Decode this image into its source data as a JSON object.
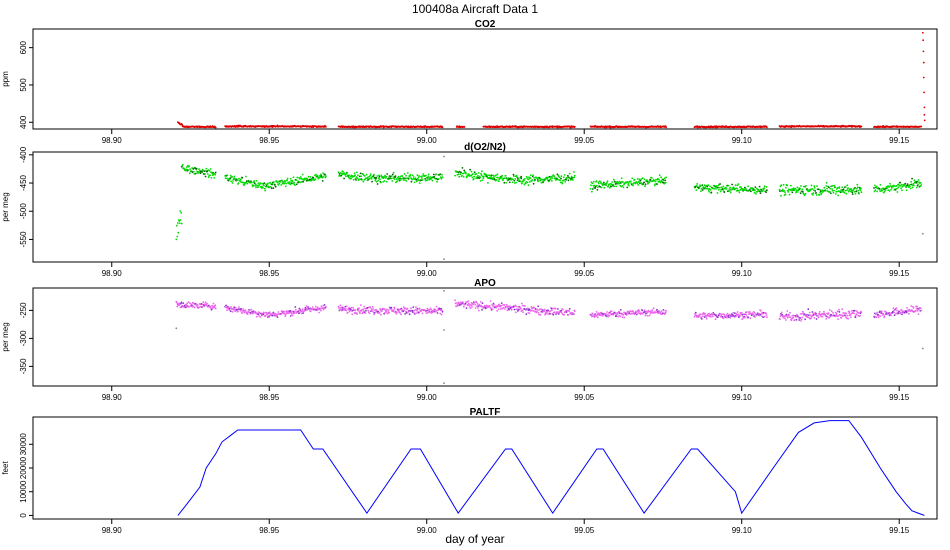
{
  "figure": {
    "title": "100408a   Aircraft Data 1",
    "xlabel": "day of year"
  },
  "chart_data": [
    {
      "type": "scatter",
      "title": "CO2",
      "ylabel": "ppm",
      "xlim": [
        98.875,
        99.162
      ],
      "ylim": [
        382,
        650
      ],
      "xticks": [
        98.9,
        98.95,
        99.0,
        99.05,
        99.1,
        99.15
      ],
      "xtick_labels": [
        "98.90",
        "98.95",
        "99.00",
        "99.05",
        "99.10",
        "99.15"
      ],
      "yticks": [
        400,
        500,
        600
      ],
      "color": "#dd0000",
      "segments": [
        {
          "x0": 98.921,
          "x1": 98.9225,
          "y0": 400,
          "y1": 390,
          "noise": 3
        },
        {
          "x0": 98.9225,
          "x1": 98.933,
          "y0": 388,
          "y1": 388,
          "noise": 1.5
        },
        {
          "x0": 98.936,
          "x1": 98.968,
          "y0": 389,
          "y1": 389,
          "noise": 1.5
        },
        {
          "x0": 98.972,
          "x1": 99.005,
          "y0": 388,
          "y1": 388,
          "noise": 1.5
        },
        {
          "x0": 99.0095,
          "x1": 99.012,
          "y0": 388,
          "y1": 388,
          "noise": 1.5
        },
        {
          "x0": 99.018,
          "x1": 99.047,
          "y0": 388,
          "y1": 388,
          "noise": 1.5
        },
        {
          "x0": 99.052,
          "x1": 99.076,
          "y0": 388,
          "y1": 388,
          "noise": 1.5
        },
        {
          "x0": 99.085,
          "x1": 99.108,
          "y0": 388,
          "y1": 388,
          "noise": 1.5
        },
        {
          "x0": 99.112,
          "x1": 99.138,
          "y0": 389,
          "y1": 389,
          "noise": 1.5
        },
        {
          "x0": 99.142,
          "x1": 99.157,
          "y0": 388,
          "y1": 388,
          "noise": 1.5
        }
      ],
      "spikes": [
        {
          "x": 99.1575,
          "y": 640
        },
        {
          "x": 99.1576,
          "y": 620
        },
        {
          "x": 99.1577,
          "y": 590
        },
        {
          "x": 99.1578,
          "y": 560
        },
        {
          "x": 99.1578,
          "y": 520
        },
        {
          "x": 99.1579,
          "y": 480
        },
        {
          "x": 99.158,
          "y": 440
        },
        {
          "x": 99.158,
          "y": 420
        },
        {
          "x": 99.1581,
          "y": 405
        }
      ]
    },
    {
      "type": "scatter",
      "title": "d(O2/N2)",
      "ylabel": "per meg",
      "xlim": [
        98.875,
        99.162
      ],
      "ylim": [
        -590,
        -395
      ],
      "xticks": [
        98.9,
        98.95,
        99.0,
        99.05,
        99.1,
        99.15
      ],
      "xtick_labels": [
        "98.90",
        "98.95",
        "99.00",
        "99.05",
        "99.10",
        "99.15"
      ],
      "yticks": [
        -550,
        -500,
        -450,
        -400
      ],
      "color": "#00dd00",
      "dark_color": "#006600",
      "segments": [
        {
          "x0": 98.9205,
          "x1": 98.9222,
          "y0": -545,
          "y1": -500,
          "noise": 12
        },
        {
          "x0": 98.9222,
          "x1": 98.924,
          "y0": -420,
          "y1": -425,
          "noise": 6
        },
        {
          "x0": 98.924,
          "x1": 98.933,
          "y0": -425,
          "y1": -435,
          "noise": 6
        },
        {
          "x0": 98.936,
          "x1": 98.948,
          "y0": -440,
          "y1": -455,
          "noise": 6
        },
        {
          "x0": 98.948,
          "x1": 98.968,
          "y0": -455,
          "y1": -438,
          "noise": 6
        },
        {
          "x0": 98.972,
          "x1": 98.985,
          "y0": -435,
          "y1": -442,
          "noise": 7
        },
        {
          "x0": 98.985,
          "x1": 99.005,
          "y0": -442,
          "y1": -440,
          "noise": 7
        },
        {
          "x0": 99.009,
          "x1": 99.03,
          "y0": -432,
          "y1": -445,
          "noise": 7
        },
        {
          "x0": 99.03,
          "x1": 99.047,
          "y0": -445,
          "y1": -440,
          "noise": 7
        },
        {
          "x0": 99.052,
          "x1": 99.076,
          "y0": -455,
          "y1": -445,
          "noise": 6
        },
        {
          "x0": 99.085,
          "x1": 99.108,
          "y0": -458,
          "y1": -462,
          "noise": 6
        },
        {
          "x0": 99.112,
          "x1": 99.138,
          "y0": -462,
          "y1": -462,
          "noise": 8
        },
        {
          "x0": 99.142,
          "x1": 99.157,
          "y0": -462,
          "y1": -450,
          "noise": 7
        }
      ],
      "outliers": [
        {
          "x": 99.0055,
          "y": -403
        },
        {
          "x": 99.0055,
          "y": -585
        },
        {
          "x": 99.1575,
          "y": -540
        }
      ]
    },
    {
      "type": "scatter",
      "title": "APO",
      "ylabel": "per meg",
      "xlim": [
        98.875,
        99.162
      ],
      "ylim": [
        -385,
        -210
      ],
      "xticks": [
        98.9,
        98.95,
        99.0,
        99.05,
        99.1,
        99.15
      ],
      "xtick_labels": [
        "98.90",
        "98.95",
        "99.00",
        "99.05",
        "99.10",
        "99.15"
      ],
      "yticks": [
        -350,
        -300,
        -250
      ],
      "color": "#ee66ee",
      "dark_color": "#8833cc",
      "segments": [
        {
          "x0": 98.9205,
          "x1": 98.933,
          "y0": -240,
          "y1": -242,
          "noise": 5
        },
        {
          "x0": 98.936,
          "x1": 98.95,
          "y0": -245,
          "y1": -258,
          "noise": 5
        },
        {
          "x0": 98.95,
          "x1": 98.968,
          "y0": -258,
          "y1": -245,
          "noise": 5
        },
        {
          "x0": 98.972,
          "x1": 99.005,
          "y0": -248,
          "y1": -252,
          "noise": 6
        },
        {
          "x0": 99.009,
          "x1": 99.047,
          "y0": -238,
          "y1": -255,
          "noise": 6
        },
        {
          "x0": 99.052,
          "x1": 99.076,
          "y0": -258,
          "y1": -252,
          "noise": 5
        },
        {
          "x0": 99.085,
          "x1": 99.108,
          "y0": -260,
          "y1": -257,
          "noise": 5
        },
        {
          "x0": 99.112,
          "x1": 99.138,
          "y0": -262,
          "y1": -255,
          "noise": 7
        },
        {
          "x0": 99.142,
          "x1": 99.157,
          "y0": -258,
          "y1": -248,
          "noise": 6
        }
      ],
      "outliers": [
        {
          "x": 98.9205,
          "y": -282
        },
        {
          "x": 99.0055,
          "y": -215
        },
        {
          "x": 99.0055,
          "y": -380
        },
        {
          "x": 99.0055,
          "y": -285
        },
        {
          "x": 99.1575,
          "y": -318
        }
      ]
    },
    {
      "type": "line",
      "title": "PALTF",
      "ylabel": "feet",
      "xlim": [
        98.875,
        99.162
      ],
      "ylim": [
        -1500,
        41500
      ],
      "xticks": [
        98.9,
        98.95,
        99.0,
        99.05,
        99.1,
        99.15
      ],
      "xtick_labels": [
        "98.90",
        "98.95",
        "99.00",
        "99.05",
        "99.10",
        "99.15"
      ],
      "yticks": [
        0,
        10000,
        20000,
        30000
      ],
      "color": "#0000ff",
      "x": [
        98.921,
        98.924,
        98.928,
        98.93,
        98.933,
        98.935,
        98.938,
        98.94,
        98.96,
        98.964,
        98.967,
        98.981,
        98.995,
        98.998,
        99.01,
        99.025,
        99.027,
        99.04,
        99.054,
        99.056,
        99.069,
        99.084,
        99.086,
        99.098,
        99.1,
        99.11,
        99.118,
        99.123,
        99.128,
        99.13,
        99.134,
        99.138,
        99.144,
        99.149,
        99.152,
        99.154,
        99.156,
        99.158
      ],
      "y": [
        0,
        5000,
        12000,
        20000,
        26000,
        31000,
        34000,
        36000,
        36000,
        28000,
        28000,
        1000,
        28000,
        28000,
        1000,
        28000,
        28000,
        1000,
        28000,
        28000,
        1000,
        28000,
        28000,
        10000,
        1000,
        20000,
        35000,
        39000,
        40000,
        40000,
        40000,
        33000,
        20000,
        10000,
        5000,
        2000,
        1000,
        0
      ]
    }
  ]
}
